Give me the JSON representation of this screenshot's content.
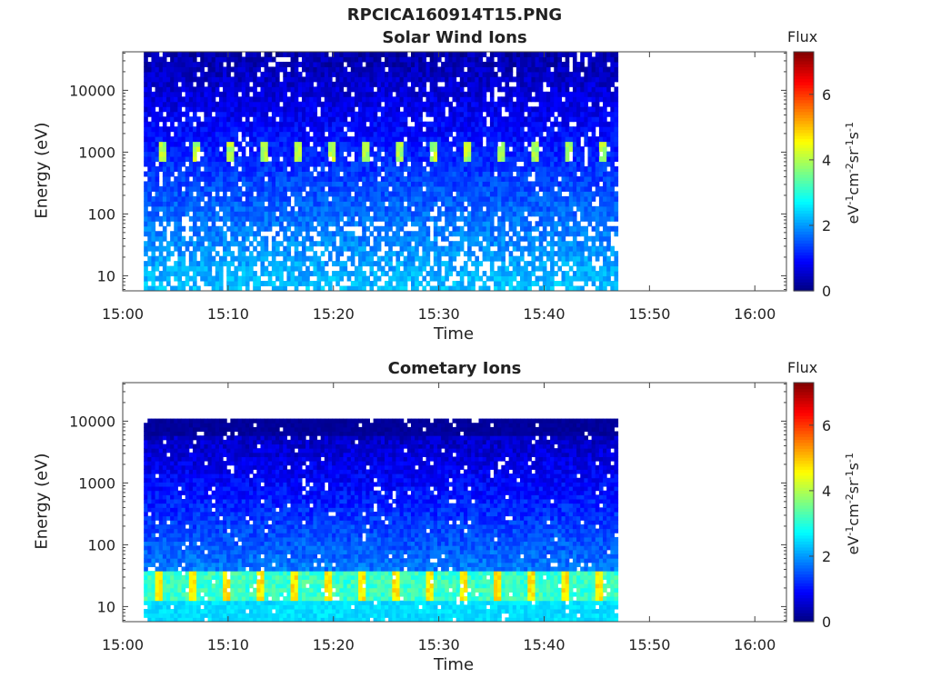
{
  "figure": {
    "title": "RPCICA160914T15.PNG"
  },
  "chart_data": [
    {
      "type": "heatmap",
      "title": "Solar Wind Ions",
      "xlabel": "Time",
      "ylabel": "Energy (eV)",
      "xlim": [
        "15:00",
        "16:03"
      ],
      "ylim_log": [
        5.7,
        42000
      ],
      "y_scale": "log",
      "x_ticks": [
        "15:00",
        "15:10",
        "15:20",
        "15:30",
        "15:40",
        "15:50",
        "16:00"
      ],
      "y_ticks": [
        {
          "value": 10,
          "label": "10"
        },
        {
          "value": 100,
          "label": "100"
        },
        {
          "value": 1000,
          "label": "1000"
        },
        {
          "value": 10000,
          "label": "10000"
        }
      ],
      "data_time_range": [
        "15:02",
        "15:47"
      ],
      "colorbar": {
        "label": "Flux",
        "unit": "eV-1 cm-2 sr-1 s-1",
        "range": [
          0,
          7.3
        ],
        "ticks": [
          0,
          2,
          4,
          6
        ]
      },
      "features": [
        "periodic flux enhancements near 1000 eV (~3 min cadence)",
        "background flux 1-2 at low energies"
      ]
    },
    {
      "type": "heatmap",
      "title": "Cometary Ions",
      "xlabel": "Time",
      "ylabel": "Energy (eV)",
      "xlim": [
        "15:00",
        "16:03"
      ],
      "ylim_log": [
        5.7,
        42000
      ],
      "y_scale": "log",
      "x_ticks": [
        "15:00",
        "15:10",
        "15:20",
        "15:30",
        "15:40",
        "15:50",
        "16:00"
      ],
      "y_ticks": [
        {
          "value": 10,
          "label": "10"
        },
        {
          "value": 100,
          "label": "100"
        },
        {
          "value": 1000,
          "label": "1000"
        },
        {
          "value": 10000,
          "label": "10000"
        }
      ],
      "data_time_range": [
        "15:02",
        "15:47"
      ],
      "colorbar": {
        "label": "Flux",
        "unit": "eV-1 cm-2 sr-1 s-1",
        "range": [
          0,
          7.3
        ],
        "ticks": [
          0,
          2,
          4,
          6
        ]
      },
      "features": [
        "periodic flux enhancements near 20 eV (~3 min cadence)",
        "upper energy cutoff near 11000 eV"
      ]
    }
  ],
  "colorbar_text": {
    "flux": "Flux",
    "units_html": "eV<sup>-1</sup>cm<sup>-2</sup>sr<sup>-1</sup>s<sup>-1</sup>"
  }
}
